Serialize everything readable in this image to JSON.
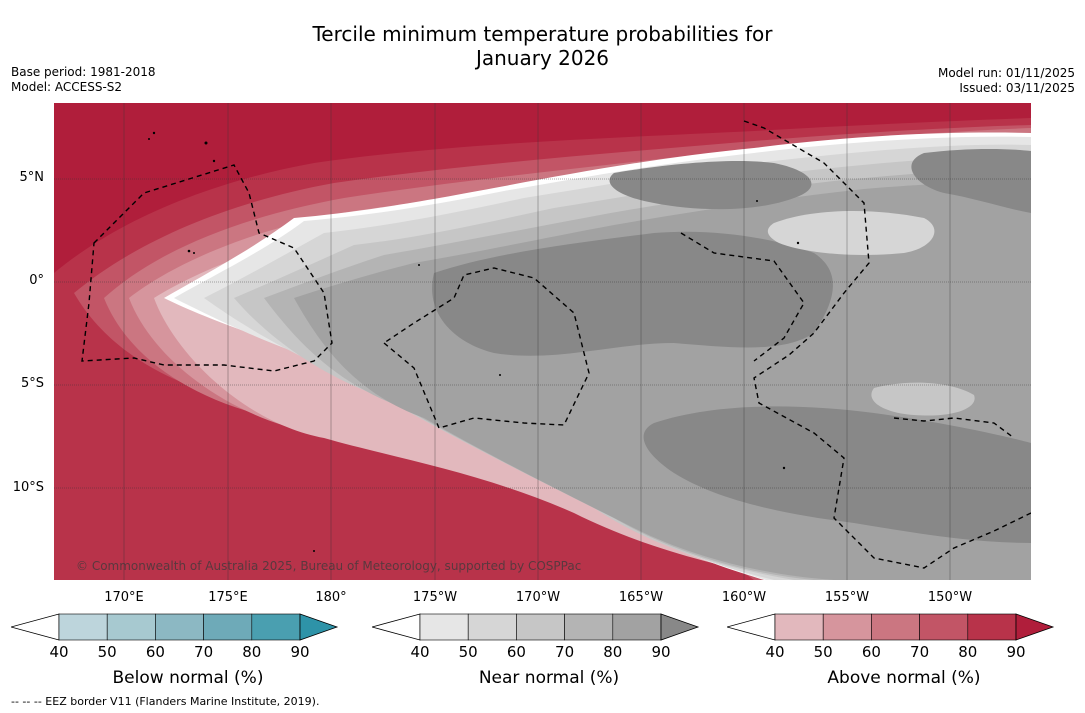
{
  "title_line1": "Tercile minimum temperature probabilities for",
  "title_line2": "January 2026",
  "base_period": "Base period: 1981-2018",
  "model": "Model: ACCESS-S2",
  "model_run": "Model run: 01/11/2025",
  "issued": "Issued: 03/11/2025",
  "copyright": "© Commonwealth of Australia 2025, Bureau of Meteorology, supported by COSPPac",
  "lat_labels": [
    "5°N",
    "0°",
    "5°S",
    "10°S"
  ],
  "lon_labels": [
    "170°E",
    "175°E",
    "180°",
    "175°W",
    "170°W",
    "165°W",
    "160°W",
    "155°W",
    "150°W"
  ],
  "colorbars": [
    {
      "label": "Below normal (%)",
      "ticks": [
        "40",
        "50",
        "60",
        "70",
        "80",
        "90"
      ],
      "colors": [
        "#ffffff",
        "#bdd5dc",
        "#a7c9d0",
        "#8cb8c3",
        "#6eaab8",
        "#4a9fb0",
        "#2e93a8"
      ]
    },
    {
      "label": "Near normal (%)",
      "ticks": [
        "40",
        "50",
        "60",
        "70",
        "80",
        "90"
      ],
      "colors": [
        "#ffffff",
        "#e6e6e6",
        "#d6d6d6",
        "#c6c6c6",
        "#b4b4b4",
        "#a2a2a2",
        "#888888"
      ]
    },
    {
      "label": "Above normal (%)",
      "ticks": [
        "40",
        "50",
        "60",
        "70",
        "80",
        "90"
      ],
      "colors": [
        "#ffffff",
        "#e2b8bd",
        "#d6959d",
        "#cb7681",
        "#c25566",
        "#b8334a",
        "#b01e3b"
      ]
    }
  ],
  "footer": "--  --  -- EEZ border V11 (Flanders Marine Institute, 2019).",
  "colors": {
    "above_90": "#b01e3b",
    "above_80": "#b8334a",
    "above_70": "#c25566",
    "above_60": "#cb7681",
    "above_50": "#d6959d",
    "above_40": "#e2b8bd",
    "near_40": "#e6e6e6",
    "near_50": "#d6d6d6",
    "near_60": "#c6c6c6",
    "near_70": "#b4b4b4",
    "near_80": "#a2a2a2",
    "near_90": "#888888"
  }
}
